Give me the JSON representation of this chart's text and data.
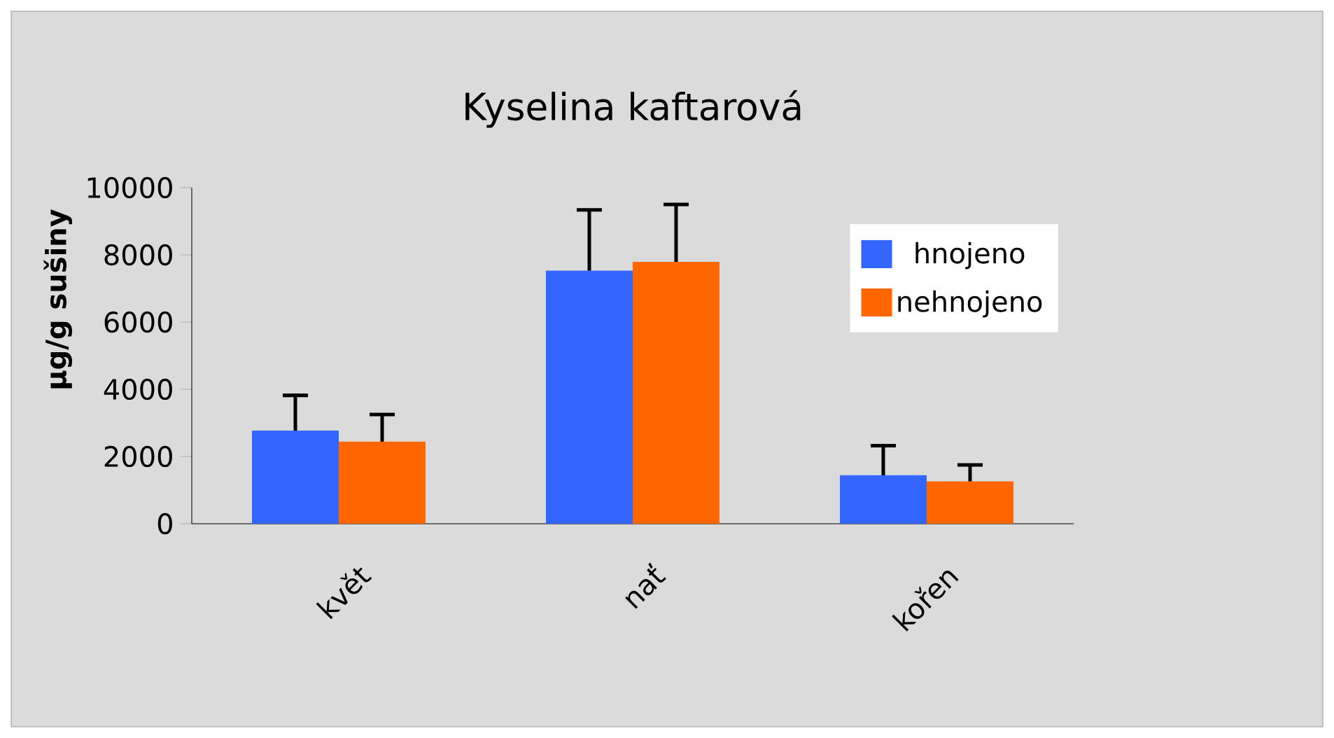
{
  "chart_data": {
    "type": "bar",
    "title": "Kyselina kaftarová",
    "ylabel": "µg/g sušiny",
    "categories": [
      "květ",
      "nať",
      "kořen"
    ],
    "series": [
      {
        "name": "hnojeno",
        "color": "#3366ff",
        "values": [
          2770,
          7530,
          1440
        ],
        "errors": [
          [
            2770,
            3820
          ],
          [
            7530,
            9340
          ],
          [
            1440,
            2320
          ]
        ]
      },
      {
        "name": "nehnojeno",
        "color": "#ff6600",
        "values": [
          2440,
          7790,
          1260
        ],
        "errors": [
          [
            2440,
            3250
          ],
          [
            7790,
            9500
          ],
          [
            1260,
            1750
          ]
        ]
      }
    ],
    "ylim": [
      0,
      10000
    ],
    "yticks": [
      0,
      2000,
      4000,
      6000,
      8000,
      10000
    ],
    "legend": "top right"
  }
}
